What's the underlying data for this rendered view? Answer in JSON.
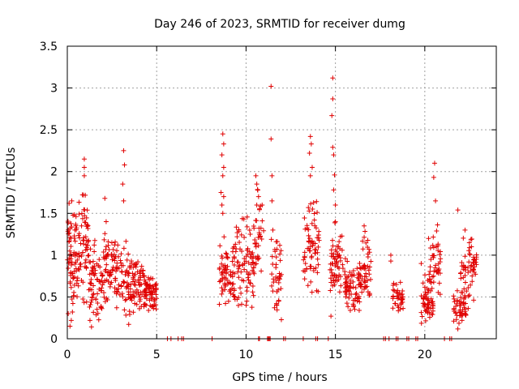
{
  "chart_data": {
    "type": "scatter",
    "title": "Day 246 of 2023, SRMTID for receiver dumg",
    "xlabel": "GPS time / hours",
    "ylabel": "SRMTID / TECUs",
    "xlim": [
      0,
      24
    ],
    "ylim": [
      0,
      3.5
    ],
    "x_ticks": [
      0,
      5,
      10,
      15,
      20
    ],
    "x_tick_labels": [
      "0",
      "5",
      "10",
      "15",
      "20"
    ],
    "y_ticks": [
      0,
      0.5,
      1,
      1.5,
      2,
      2.5,
      3,
      3.5
    ],
    "y_tick_labels": [
      "0",
      "0.5",
      "1",
      "1.5",
      "2",
      "2.5",
      "3",
      "3.5"
    ],
    "grid": true,
    "marker": "+",
    "color": "#e00000",
    "series": [
      {
        "name": "SRMTID",
        "clusters": [
          {
            "x_range": [
              0.0,
              0.6
            ],
            "y_range": [
              0.15,
              1.65
            ],
            "count": 70
          },
          {
            "x_range": [
              0.6,
              1.2
            ],
            "y_range": [
              0.3,
              1.8
            ],
            "count": 60
          },
          {
            "x_range": [
              1.2,
              2.0
            ],
            "y_range": [
              0.05,
              1.2
            ],
            "count": 70
          },
          {
            "x_range": [
              2.0,
              3.0
            ],
            "y_range": [
              0.3,
              1.45
            ],
            "count": 80
          },
          {
            "x_range": [
              3.0,
              3.6
            ],
            "y_range": [
              0.1,
              1.2
            ],
            "count": 50
          },
          {
            "x_range": [
              3.6,
              4.3
            ],
            "y_range": [
              0.3,
              1.0
            ],
            "count": 60
          },
          {
            "x_range": [
              4.3,
              5.0
            ],
            "y_range": [
              0.3,
              0.8
            ],
            "count": 70
          },
          {
            "x_range": [
              8.5,
              9.3
            ],
            "y_range": [
              0.3,
              1.3
            ],
            "count": 60
          },
          {
            "x_range": [
              9.3,
              10.5
            ],
            "y_range": [
              0.3,
              1.5
            ],
            "count": 90
          },
          {
            "x_range": [
              10.5,
              11.0
            ],
            "y_range": [
              0.6,
              1.9
            ],
            "count": 30
          },
          {
            "x_range": [
              11.4,
              12.0
            ],
            "y_range": [
              0.1,
              1.3
            ],
            "count": 40
          },
          {
            "x_range": [
              13.2,
              14.1
            ],
            "y_range": [
              0.4,
              1.8
            ],
            "count": 70
          },
          {
            "x_range": [
              14.7,
              15.5
            ],
            "y_range": [
              0.5,
              1.4
            ],
            "count": 60
          },
          {
            "x_range": [
              15.5,
              16.5
            ],
            "y_range": [
              0.3,
              1.0
            ],
            "count": 80
          },
          {
            "x_range": [
              16.5,
              17.0
            ],
            "y_range": [
              0.3,
              1.4
            ],
            "count": 40
          },
          {
            "x_range": [
              18.2,
              18.8
            ],
            "y_range": [
              0.3,
              0.7
            ],
            "count": 40
          },
          {
            "x_range": [
              19.8,
              20.5
            ],
            "y_range": [
              0.15,
              0.8
            ],
            "count": 60
          },
          {
            "x_range": [
              20.2,
              20.9
            ],
            "y_range": [
              0.4,
              1.5
            ],
            "count": 40
          },
          {
            "x_range": [
              21.6,
              22.3
            ],
            "y_range": [
              0.1,
              0.6
            ],
            "count": 50
          },
          {
            "x_range": [
              22.0,
              22.9
            ],
            "y_range": [
              0.3,
              1.3
            ],
            "count": 60
          }
        ],
        "points": [
          [
            0.1,
            1.62
          ],
          [
            0.25,
            1.65
          ],
          [
            0.9,
            1.72
          ],
          [
            0.95,
            2.05
          ],
          [
            0.95,
            2.15
          ],
          [
            0.95,
            1.95
          ],
          [
            2.1,
            1.68
          ],
          [
            3.15,
            2.25
          ],
          [
            3.2,
            2.08
          ],
          [
            3.1,
            1.85
          ],
          [
            3.15,
            1.65
          ],
          [
            8.7,
            2.45
          ],
          [
            8.75,
            2.33
          ],
          [
            8.65,
            2.2
          ],
          [
            8.75,
            2.05
          ],
          [
            8.7,
            1.95
          ],
          [
            8.6,
            1.75
          ],
          [
            8.75,
            1.7
          ],
          [
            8.65,
            1.6
          ],
          [
            8.7,
            1.5
          ],
          [
            10.55,
            1.95
          ],
          [
            10.6,
            1.85
          ],
          [
            10.7,
            1.7
          ],
          [
            10.6,
            1.6
          ],
          [
            10.9,
            1.6
          ],
          [
            11.4,
            3.02
          ],
          [
            11.4,
            2.39
          ],
          [
            11.45,
            1.95
          ],
          [
            11.45,
            1.65
          ],
          [
            11.5,
            1.3
          ],
          [
            13.6,
            2.42
          ],
          [
            13.65,
            2.33
          ],
          [
            13.55,
            2.22
          ],
          [
            13.7,
            2.05
          ],
          [
            13.6,
            1.95
          ],
          [
            14.85,
            3.12
          ],
          [
            14.85,
            2.87
          ],
          [
            14.8,
            2.67
          ],
          [
            14.85,
            2.29
          ],
          [
            14.9,
            2.2
          ],
          [
            14.95,
            1.96
          ],
          [
            14.9,
            1.78
          ],
          [
            15.0,
            1.6
          ],
          [
            15.0,
            1.4
          ],
          [
            18.1,
            1.0
          ],
          [
            18.1,
            0.93
          ],
          [
            19.8,
            0.9
          ],
          [
            20.55,
            2.1
          ],
          [
            20.5,
            1.93
          ],
          [
            20.6,
            1.65
          ],
          [
            21.85,
            1.54
          ],
          [
            22.25,
            1.3
          ],
          [
            14.75,
            0.27
          ],
          [
            0.05,
            0.3
          ],
          [
            0.15,
            0.15
          ]
        ],
        "zero_points": [
          5.6,
          5.8,
          6.2,
          6.4,
          6.5,
          8.1,
          10.7,
          10.75,
          11.2,
          11.25,
          11.3,
          11.35,
          12.1,
          12.2,
          13.2,
          13.9,
          14.0,
          14.6,
          17.7,
          17.8,
          18.0,
          18.4,
          18.5,
          19.0,
          19.1,
          19.5,
          19.6,
          21.1,
          21.4,
          21.5
        ]
      }
    ]
  }
}
